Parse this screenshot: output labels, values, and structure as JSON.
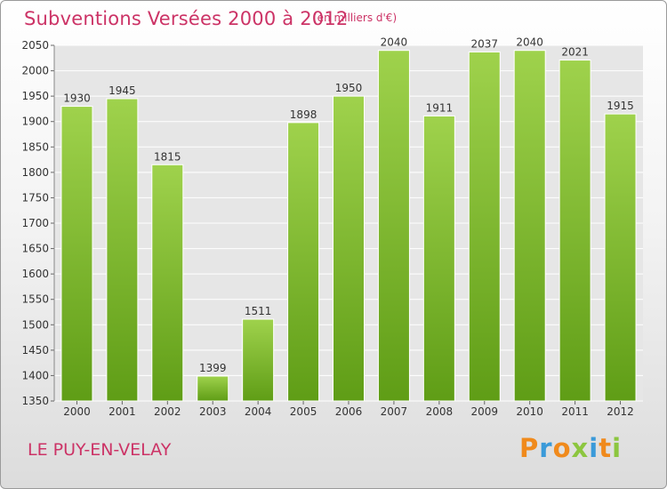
{
  "chart_data": {
    "type": "bar",
    "title": "Subventions Versées 2000 à 2012",
    "subtitle": "(en milliers d'€)",
    "categories": [
      "2000",
      "2001",
      "2002",
      "2003",
      "2004",
      "2005",
      "2006",
      "2007",
      "2008",
      "2009",
      "2010",
      "2011",
      "2012"
    ],
    "values": [
      1930,
      1945,
      1815,
      1399,
      1511,
      1898,
      1950,
      2040,
      1911,
      2037,
      2040,
      2021,
      1915
    ],
    "ylim": [
      1350,
      2050
    ],
    "yticks": [
      1350,
      1400,
      1450,
      1500,
      1550,
      1600,
      1650,
      1700,
      1750,
      1800,
      1850,
      1900,
      1950,
      2000,
      2050
    ],
    "grid": true,
    "bar_color_top": "#9fd24c",
    "bar_color_bottom": "#5f9d16"
  },
  "footer": {
    "city": "LE PUY-EN-VELAY",
    "logo_text": "Proxiti"
  },
  "colors": {
    "accent": "#cc3366"
  }
}
